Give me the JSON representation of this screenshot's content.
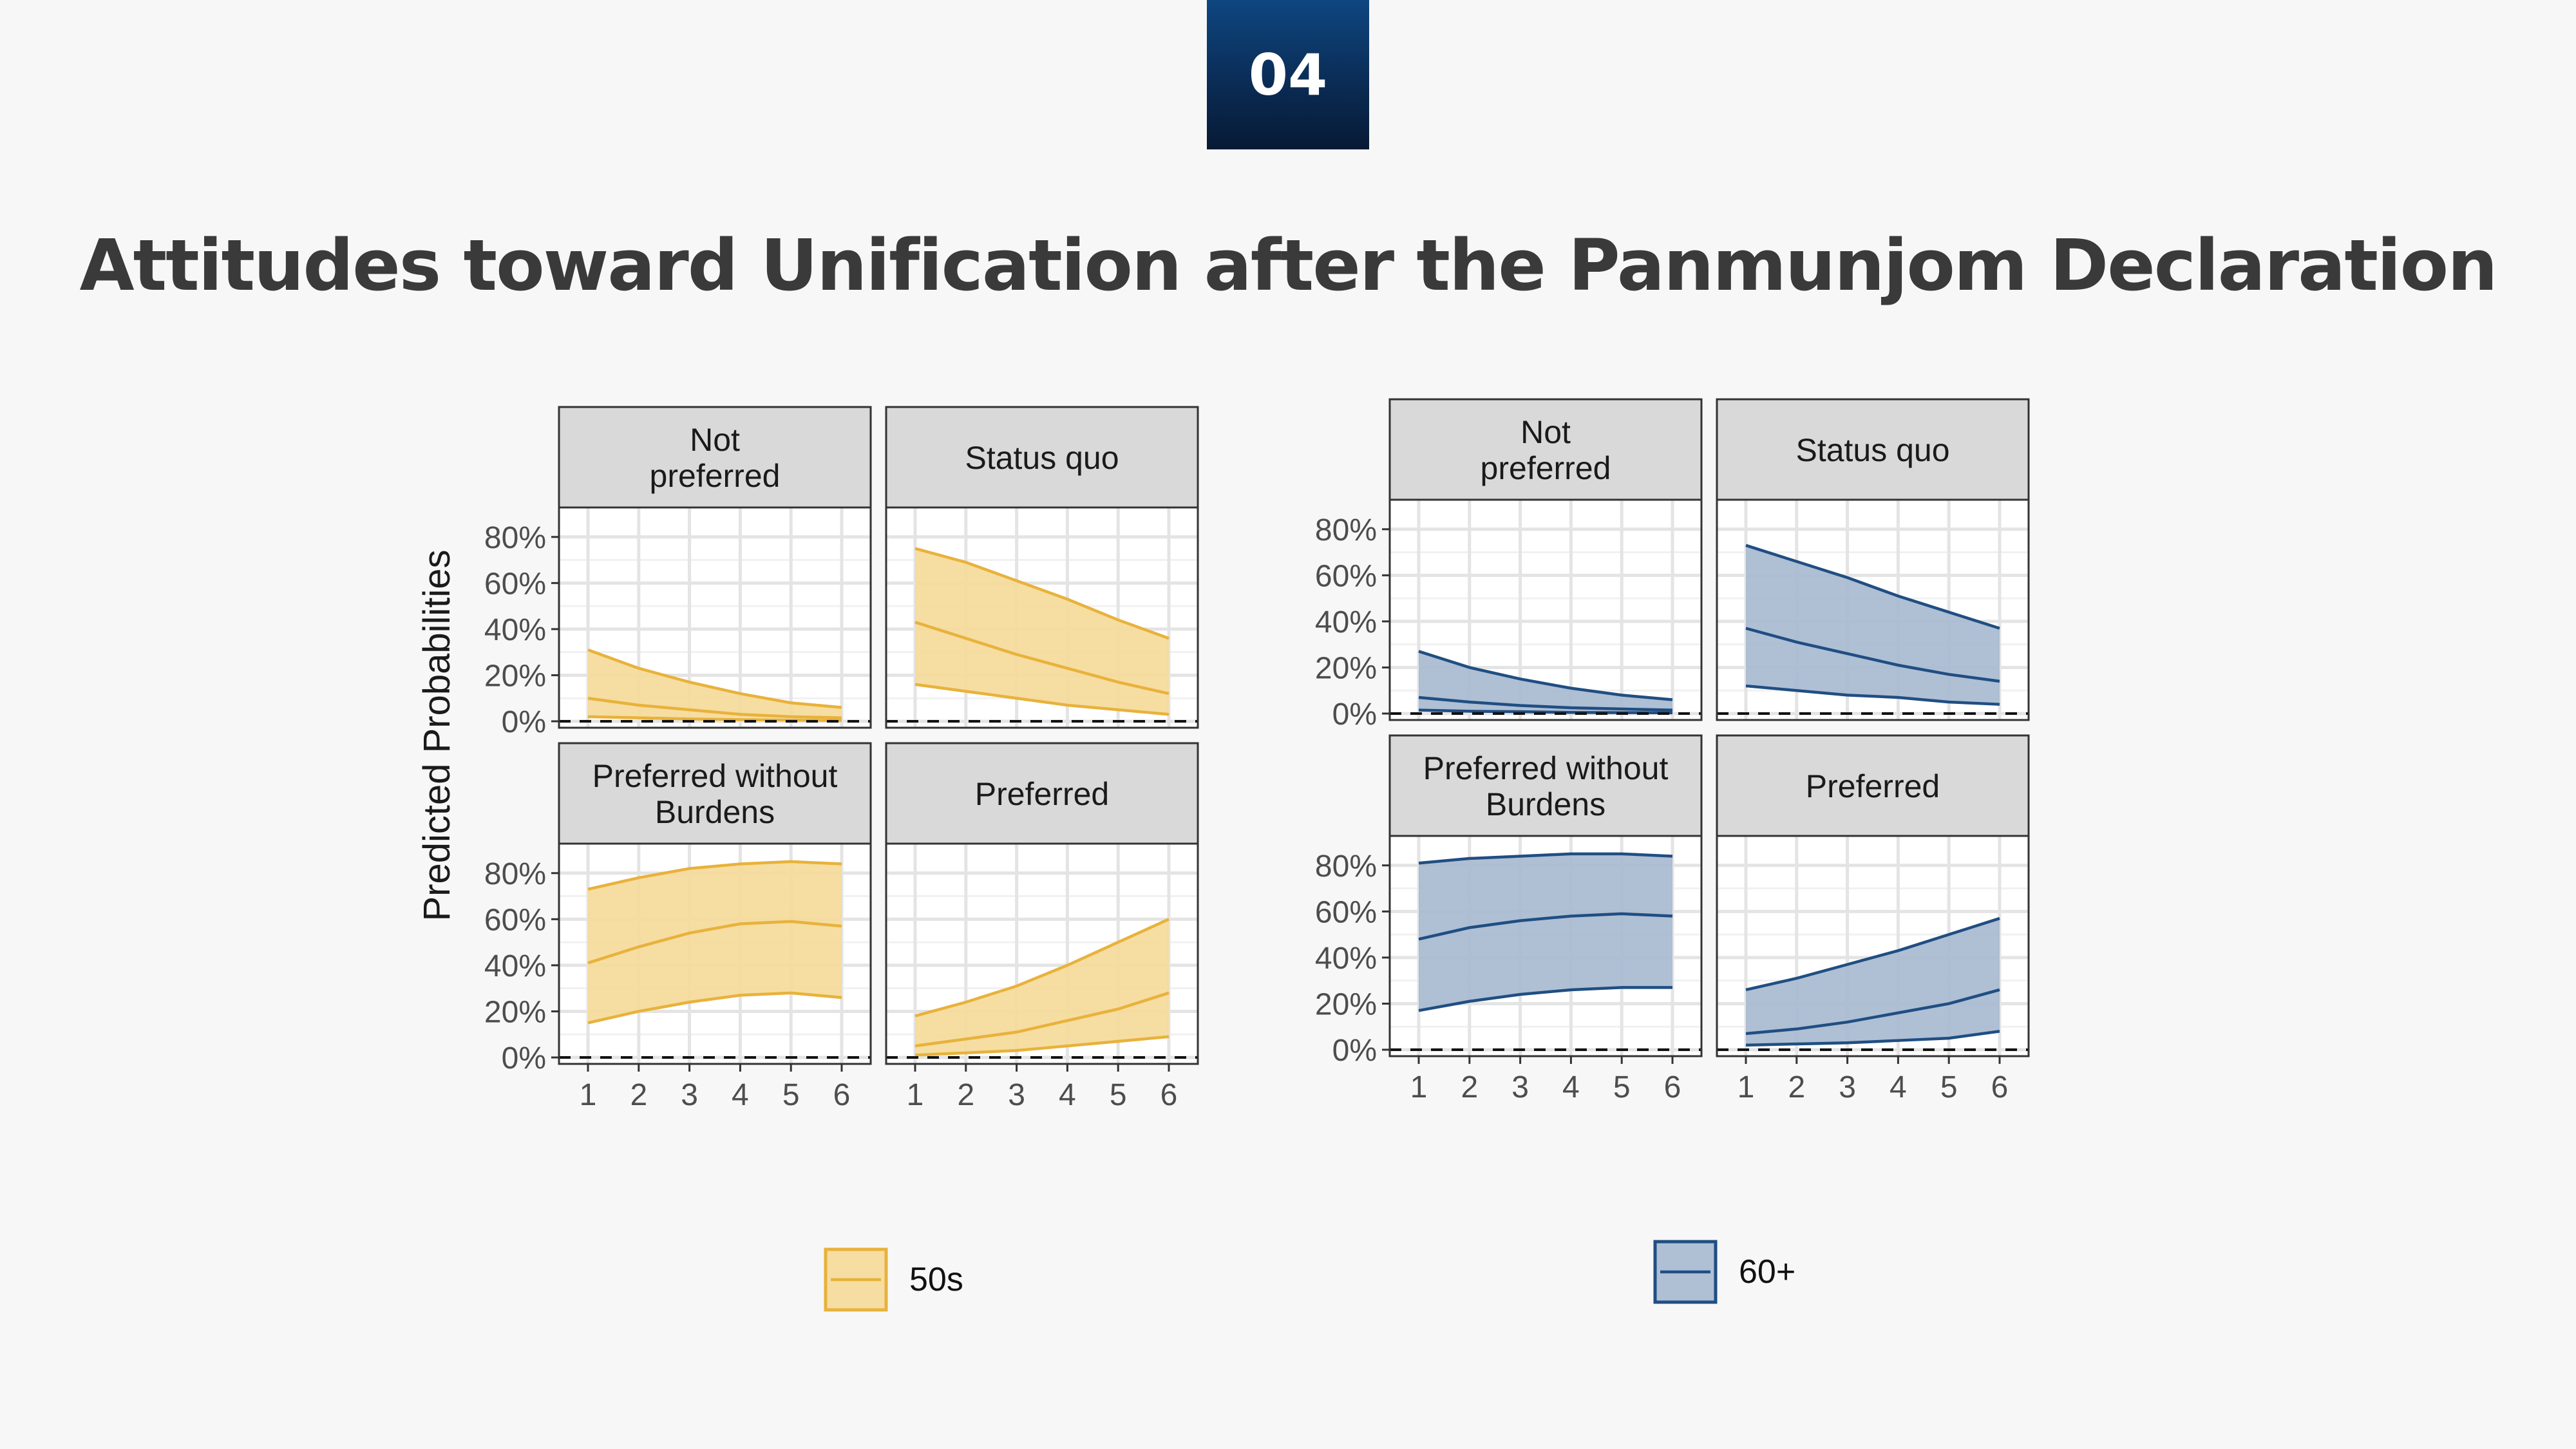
{
  "header": {
    "section_number": "04",
    "title": "Attitudes toward Unification after the Panmunjom Declaration"
  },
  "chart_data": [
    {
      "type": "area",
      "ylabel": "Predicted Probabilities",
      "color": "#e8b23a",
      "fill": "#f5d998",
      "legend": {
        "label": "50s",
        "placement": "bottom"
      },
      "x": [
        1,
        2,
        3,
        4,
        5,
        6
      ],
      "ylim": [
        0,
        0.9
      ],
      "yticks": [
        "0%",
        "20%",
        "40%",
        "60%",
        "80%"
      ],
      "panels": [
        {
          "strip": [
            "Not",
            "preferred"
          ],
          "mean": [
            0.1,
            0.07,
            0.05,
            0.03,
            0.02,
            0.015
          ],
          "lower": [
            0.02,
            0.015,
            0.01,
            0.007,
            0.005,
            0.003
          ],
          "upper": [
            0.31,
            0.23,
            0.17,
            0.12,
            0.08,
            0.06
          ]
        },
        {
          "strip": [
            "Status quo"
          ],
          "mean": [
            0.43,
            0.36,
            0.29,
            0.23,
            0.17,
            0.12
          ],
          "lower": [
            0.16,
            0.13,
            0.1,
            0.07,
            0.05,
            0.03
          ],
          "upper": [
            0.75,
            0.69,
            0.61,
            0.53,
            0.44,
            0.36
          ]
        },
        {
          "strip": [
            "Preferred without",
            "Burdens"
          ],
          "mean": [
            0.41,
            0.48,
            0.54,
            0.58,
            0.59,
            0.57
          ],
          "lower": [
            0.15,
            0.2,
            0.24,
            0.27,
            0.28,
            0.26
          ],
          "upper": [
            0.73,
            0.78,
            0.82,
            0.84,
            0.85,
            0.84
          ]
        },
        {
          "strip": [
            "Preferred"
          ],
          "mean": [
            0.05,
            0.08,
            0.11,
            0.16,
            0.21,
            0.28
          ],
          "lower": [
            0.01,
            0.02,
            0.03,
            0.05,
            0.07,
            0.09
          ],
          "upper": [
            0.18,
            0.24,
            0.31,
            0.4,
            0.5,
            0.6
          ]
        }
      ]
    },
    {
      "type": "area",
      "ylabel": "",
      "color": "#1f4e82",
      "fill": "#a6b8cf",
      "legend": {
        "label": "60+",
        "placement": "bottom"
      },
      "x": [
        1,
        2,
        3,
        4,
        5,
        6
      ],
      "ylim": [
        0,
        0.9
      ],
      "yticks": [
        "0%",
        "20%",
        "40%",
        "60%",
        "80%"
      ],
      "panels": [
        {
          "strip": [
            "Not",
            "preferred"
          ],
          "mean": [
            0.07,
            0.05,
            0.035,
            0.025,
            0.02,
            0.015
          ],
          "lower": [
            0.015,
            0.01,
            0.008,
            0.005,
            0.004,
            0.003
          ],
          "upper": [
            0.27,
            0.2,
            0.15,
            0.11,
            0.08,
            0.06
          ]
        },
        {
          "strip": [
            "Status quo"
          ],
          "mean": [
            0.37,
            0.31,
            0.26,
            0.21,
            0.17,
            0.14
          ],
          "lower": [
            0.12,
            0.1,
            0.08,
            0.07,
            0.05,
            0.04
          ],
          "upper": [
            0.73,
            0.66,
            0.59,
            0.51,
            0.44,
            0.37
          ]
        },
        {
          "strip": [
            "Preferred without",
            "Burdens"
          ],
          "mean": [
            0.48,
            0.53,
            0.56,
            0.58,
            0.59,
            0.58
          ],
          "lower": [
            0.17,
            0.21,
            0.24,
            0.26,
            0.27,
            0.27
          ],
          "upper": [
            0.81,
            0.83,
            0.84,
            0.85,
            0.85,
            0.84
          ]
        },
        {
          "strip": [
            "Preferred"
          ],
          "mean": [
            0.07,
            0.09,
            0.12,
            0.16,
            0.2,
            0.26
          ],
          "lower": [
            0.02,
            0.025,
            0.03,
            0.04,
            0.05,
            0.08
          ],
          "upper": [
            0.26,
            0.31,
            0.37,
            0.43,
            0.5,
            0.57
          ]
        }
      ]
    }
  ]
}
